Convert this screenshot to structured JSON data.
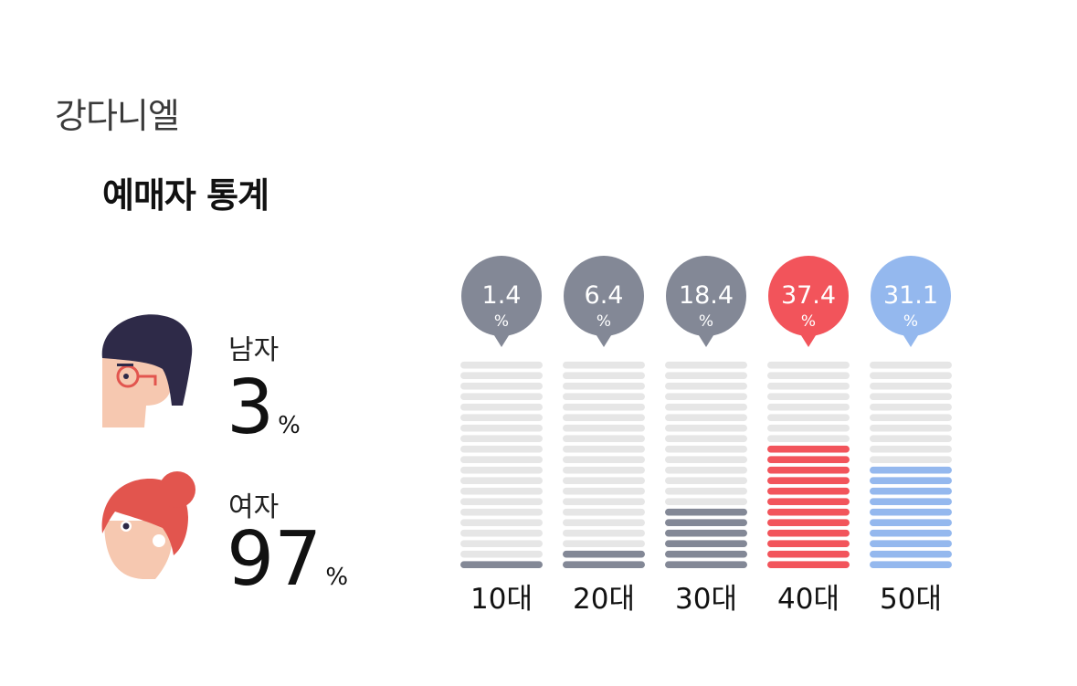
{
  "header": {
    "artist": "강다니엘",
    "title": "예매자 통계"
  },
  "gender": {
    "male": {
      "label": "남자",
      "value": "3",
      "unit": "%"
    },
    "female": {
      "label": "여자",
      "value": "97",
      "unit": "%"
    }
  },
  "colors": {
    "gray": "#838896",
    "red": "#f2545b",
    "blue": "#94b8ee",
    "track": "#e6e6e6",
    "male_hair": "#2e2a48",
    "female_hair": "#e2554e",
    "skin": "#f6c8b0"
  },
  "chart_data": {
    "type": "bar",
    "categories": [
      "10대",
      "20대",
      "30대",
      "40대",
      "50대"
    ],
    "values": [
      1.4,
      6.4,
      18.4,
      37.4,
      31.1
    ],
    "value_labels": [
      "1.4",
      "6.4",
      "18.4",
      "37.4",
      "31.1"
    ],
    "unit": "%",
    "colors": [
      "#838896",
      "#838896",
      "#838896",
      "#f2545b",
      "#94b8ee"
    ],
    "ylim": [
      0,
      100
    ]
  }
}
